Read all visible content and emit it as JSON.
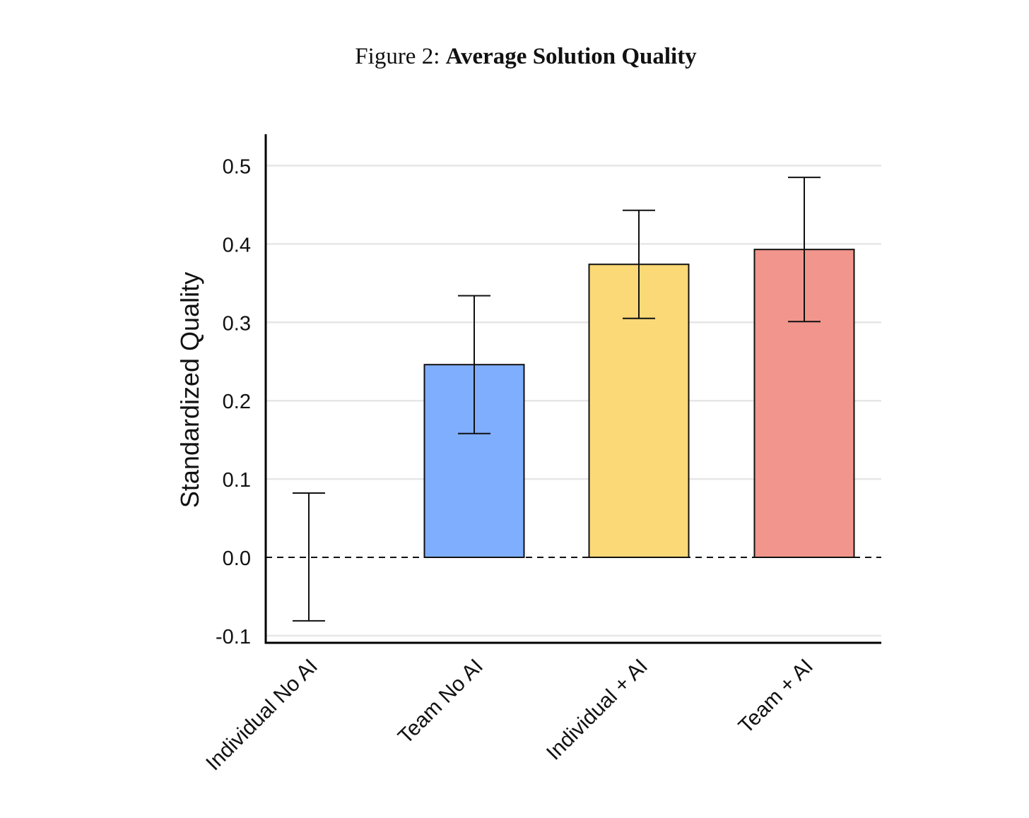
{
  "figure": {
    "prefix": "Figure 2:",
    "title": "Average Solution Quality"
  },
  "chart_data": {
    "type": "bar",
    "title": "Average Solution Quality",
    "xlabel": "",
    "ylabel": "Standardized Quality",
    "categories": [
      "Individual No AI",
      "Team No AI",
      "Individual + AI",
      "Team + AI"
    ],
    "values": [
      0.0,
      0.246,
      0.374,
      0.393
    ],
    "error_low": [
      -0.081,
      0.158,
      0.305,
      0.301
    ],
    "error_high": [
      0.082,
      0.334,
      0.443,
      0.485
    ],
    "colors": [
      "#7faeff",
      "#7faeff",
      "#fbd976",
      "#f2968d"
    ],
    "ylim": [
      -0.11,
      0.54
    ],
    "yticks": [
      -0.1,
      0.0,
      0.1,
      0.2,
      0.3,
      0.4,
      0.5
    ],
    "ytick_labels": [
      "-0.1",
      "0.0",
      "0.1",
      "0.2",
      "0.3",
      "0.4",
      "0.5"
    ],
    "grid": true,
    "reference_line": 0.0,
    "legend": "none"
  }
}
